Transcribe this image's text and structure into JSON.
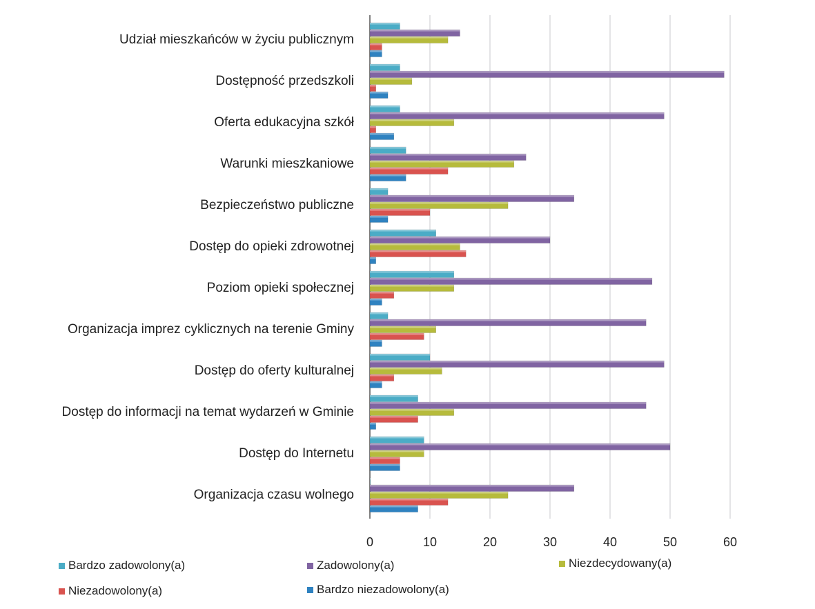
{
  "chart_data": {
    "type": "bar",
    "orientation": "horizontal",
    "categories": [
      "Udział mieszkańców w życiu publicznym",
      "Dostępność przedszkoli",
      "Oferta edukacyjna szkół",
      "Warunki mieszkaniowe",
      "Bezpieczeństwo publiczne",
      "Dostęp do opieki zdrowotnej",
      "Poziom opieki społecznej",
      "Organizacja imprez cyklicznych na terenie Gminy",
      "Dostęp do oferty kulturalnej",
      "Dostęp do informacji na temat wydarzeń w Gminie",
      "Dostęp do Internetu",
      "Organizacja czasu wolnego"
    ],
    "series": [
      {
        "name": "Bardzo zadowolony(a)",
        "color": "#4bacc6",
        "values": [
          5,
          5,
          5,
          6,
          3,
          11,
          14,
          3,
          10,
          8,
          9,
          0
        ]
      },
      {
        "name": "Zadowolony(a)",
        "color": "#8064a2",
        "values": [
          15,
          59,
          49,
          26,
          34,
          30,
          47,
          46,
          49,
          46,
          50,
          34
        ]
      },
      {
        "name": "Niezdecydowany(a)",
        "color": "#b6bb3c",
        "values": [
          13,
          7,
          14,
          24,
          23,
          15,
          14,
          11,
          12,
          14,
          9,
          23
        ]
      },
      {
        "name": "Niezadowolony(a)",
        "color": "#d9534f",
        "values": [
          2,
          1,
          1,
          13,
          10,
          16,
          4,
          9,
          4,
          8,
          5,
          13
        ]
      },
      {
        "name": "Bardzo niezadowolony(a)",
        "color": "#2f82c0",
        "values": [
          2,
          3,
          4,
          6,
          3,
          1,
          2,
          2,
          2,
          1,
          5,
          8
        ]
      }
    ],
    "x_ticks": [
      "0",
      "10",
      "20",
      "30",
      "40",
      "50",
      "60"
    ],
    "xlim": [
      0,
      60
    ],
    "grid": true,
    "legend_position": "bottom"
  }
}
